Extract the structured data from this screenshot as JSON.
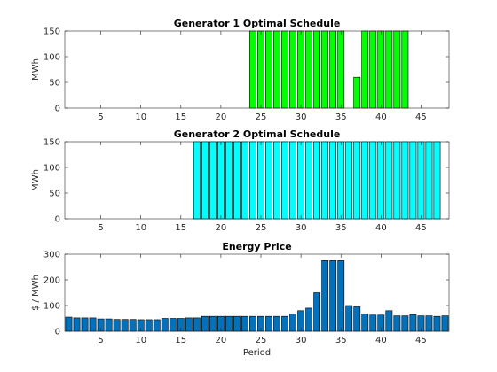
{
  "chart_data": [
    {
      "type": "bar",
      "title": "Generator 1 Optimal Schedule",
      "xlabel": "",
      "ylabel": "MWh",
      "xlim": [
        0.5,
        48.5
      ],
      "ylim": [
        0,
        150
      ],
      "xticks": [
        5,
        10,
        15,
        20,
        25,
        30,
        35,
        40,
        45
      ],
      "yticks": [
        0,
        50,
        100,
        150
      ],
      "bar_color": "#00ff00",
      "x": [
        1,
        2,
        3,
        4,
        5,
        6,
        7,
        8,
        9,
        10,
        11,
        12,
        13,
        14,
        15,
        16,
        17,
        18,
        19,
        20,
        21,
        22,
        23,
        24,
        25,
        26,
        27,
        28,
        29,
        30,
        31,
        32,
        33,
        34,
        35,
        36,
        37,
        38,
        39,
        40,
        41,
        42,
        43,
        44,
        45,
        46,
        47,
        48
      ],
      "values": [
        0,
        0,
        0,
        0,
        0,
        0,
        0,
        0,
        0,
        0,
        0,
        0,
        0,
        0,
        0,
        0,
        0,
        0,
        0,
        0,
        0,
        0,
        0,
        150,
        150,
        150,
        150,
        150,
        150,
        150,
        150,
        150,
        150,
        150,
        150,
        0,
        60,
        150,
        150,
        150,
        150,
        150,
        150,
        0,
        0,
        0,
        0,
        0
      ]
    },
    {
      "type": "bar",
      "title": "Generator 2 Optimal Schedule",
      "xlabel": "",
      "ylabel": "MWh",
      "xlim": [
        0.5,
        48.5
      ],
      "ylim": [
        0,
        150
      ],
      "xticks": [
        5,
        10,
        15,
        20,
        25,
        30,
        35,
        40,
        45
      ],
      "yticks": [
        0,
        50,
        100,
        150
      ],
      "bar_color": "#00ffff",
      "x": [
        1,
        2,
        3,
        4,
        5,
        6,
        7,
        8,
        9,
        10,
        11,
        12,
        13,
        14,
        15,
        16,
        17,
        18,
        19,
        20,
        21,
        22,
        23,
        24,
        25,
        26,
        27,
        28,
        29,
        30,
        31,
        32,
        33,
        34,
        35,
        36,
        37,
        38,
        39,
        40,
        41,
        42,
        43,
        44,
        45,
        46,
        47,
        48
      ],
      "values": [
        0,
        0,
        0,
        0,
        0,
        0,
        0,
        0,
        0,
        0,
        0,
        0,
        0,
        0,
        0,
        0,
        150,
        150,
        150,
        150,
        150,
        150,
        150,
        150,
        150,
        150,
        150,
        150,
        150,
        150,
        150,
        150,
        150,
        150,
        150,
        150,
        150,
        150,
        150,
        150,
        150,
        150,
        150,
        150,
        150,
        150,
        150,
        0
      ]
    },
    {
      "type": "bar",
      "title": "Energy Price",
      "xlabel": "Period",
      "ylabel": "$ / MWh",
      "xlim": [
        0.5,
        48.5
      ],
      "ylim": [
        0,
        300
      ],
      "xticks": [
        5,
        10,
        15,
        20,
        25,
        30,
        35,
        40,
        45
      ],
      "yticks": [
        0,
        100,
        200,
        300
      ],
      "bar_color": "#0072bd",
      "x": [
        1,
        2,
        3,
        4,
        5,
        6,
        7,
        8,
        9,
        10,
        11,
        12,
        13,
        14,
        15,
        16,
        17,
        18,
        19,
        20,
        21,
        22,
        23,
        24,
        25,
        26,
        27,
        28,
        29,
        30,
        31,
        32,
        33,
        34,
        35,
        36,
        37,
        38,
        39,
        40,
        41,
        42,
        43,
        44,
        45,
        46,
        47,
        48
      ],
      "values": [
        55,
        52,
        52,
        52,
        48,
        48,
        46,
        46,
        46,
        45,
        45,
        45,
        50,
        50,
        50,
        52,
        52,
        58,
        58,
        58,
        58,
        58,
        58,
        58,
        58,
        58,
        58,
        58,
        68,
        80,
        90,
        150,
        275,
        275,
        275,
        100,
        95,
        68,
        63,
        63,
        80,
        60,
        60,
        65,
        60,
        60,
        58,
        60
      ]
    }
  ]
}
